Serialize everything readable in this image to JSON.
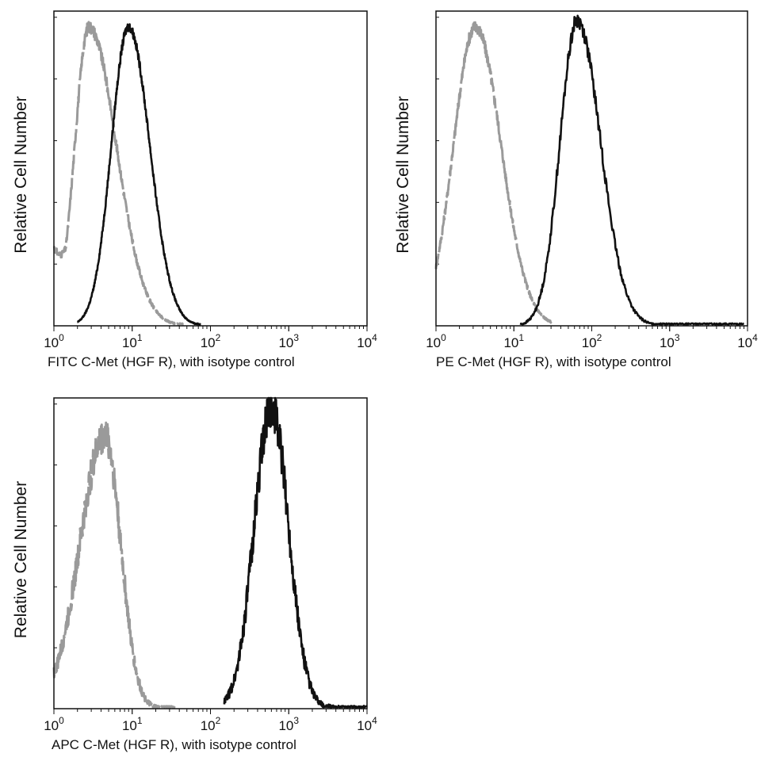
{
  "chart_data": [
    {
      "type": "line",
      "ylabel": "Relative Cell Number",
      "xlabel": "FITC  C-Met (HGF R),  with isotype control",
      "xscale": "log",
      "xlim": [
        1,
        10000
      ],
      "x_ticks": [
        "10^0",
        "10^1",
        "10^2",
        "10^3",
        "10^4"
      ],
      "grid": false,
      "series": [
        {
          "style": "dashed-gray",
          "color": "#9a9a9a",
          "peak": 2.8,
          "left_sigma": 0.18,
          "right_sigma": 0.35,
          "peak_height": 0.95,
          "noise": 0.04,
          "x_from": 1.0,
          "x_to": 45,
          "start": 0.25
        },
        {
          "style": "solid-black",
          "color": "#111111",
          "peak": 9.0,
          "left_sigma": 0.22,
          "right_sigma": 0.27,
          "peak_height": 0.95,
          "noise": 0.03,
          "x_from": 2.0,
          "x_to": 75
        }
      ]
    },
    {
      "type": "line",
      "ylabel": "Relative Cell Number",
      "xlabel": "PE  C-Met (HGF R),  with isotype control",
      "xscale": "log",
      "xlim": [
        1,
        10000
      ],
      "x_ticks": [
        "10^0",
        "10^1",
        "10^2",
        "10^3",
        "10^4"
      ],
      "grid": false,
      "series": [
        {
          "style": "dashed-gray",
          "color": "#9a9a9a",
          "peak": 3.2,
          "left_sigma": 0.28,
          "right_sigma": 0.33,
          "peak_height": 0.95,
          "noise": 0.04,
          "x_from": 1.0,
          "x_to": 30,
          "start": 0.1
        },
        {
          "style": "solid-black",
          "color": "#111111",
          "peak": 65,
          "left_sigma": 0.22,
          "right_sigma": 0.3,
          "peak_height": 0.97,
          "noise": 0.05,
          "x_from": 12,
          "x_to": 9000
        }
      ]
    },
    {
      "type": "line",
      "ylabel": "Relative Cell Number",
      "xlabel": "APC C-Met (HGF R), with isotype control",
      "xscale": "log",
      "xlim": [
        1,
        10000
      ],
      "x_ticks": [
        "10^0",
        "10^1",
        "10^2",
        "10^3",
        "10^4"
      ],
      "grid": false,
      "series": [
        {
          "style": "dashed-gray",
          "color": "#9a9a9a",
          "peak": 4.5,
          "left_sigma": 0.32,
          "right_sigma": 0.2,
          "peak_height": 0.88,
          "noise": 0.12,
          "x_from": 1.0,
          "x_to": 35,
          "start": 0.12
        },
        {
          "style": "solid-black",
          "color": "#111111",
          "peak": 600,
          "left_sigma": 0.22,
          "right_sigma": 0.22,
          "peak_height": 0.97,
          "noise": 0.14,
          "x_from": 150,
          "x_to": 9900
        }
      ]
    }
  ]
}
